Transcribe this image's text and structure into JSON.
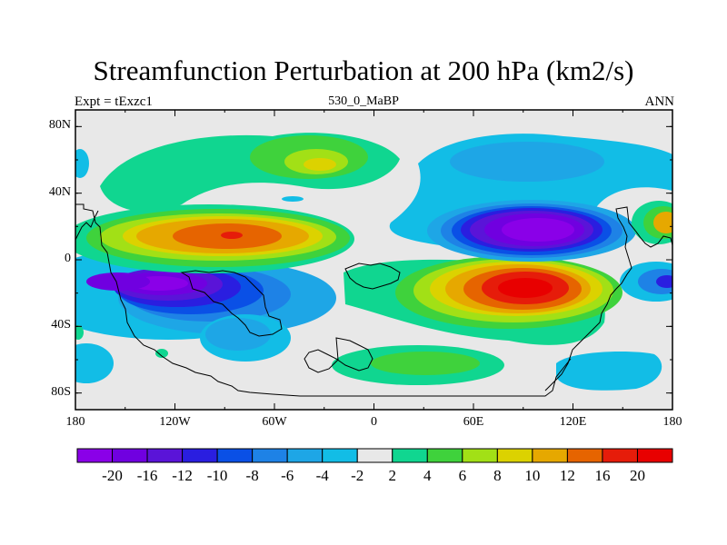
{
  "chart_data": {
    "type": "heatmap",
    "title": "Streamfunction Perturbation at 200 hPa (km2/s)",
    "subtitle_left": "Expt = tExzc1",
    "subtitle_center": "530_0_MaBP",
    "subtitle_right": "ANN",
    "x_ticks": [
      "180",
      "120W",
      "60W",
      "0",
      "60E",
      "120E",
      "180"
    ],
    "x_tick_values": [
      -180,
      -120,
      -60,
      0,
      60,
      120,
      180
    ],
    "y_ticks": [
      "80N",
      "40N",
      "0",
      "40S",
      "80S"
    ],
    "y_tick_values": [
      80,
      40,
      0,
      -40,
      -80
    ],
    "xlim": [
      -180,
      180
    ],
    "ylim": [
      -90,
      90
    ],
    "colorbar": {
      "labels": [
        "-20",
        "-16",
        "-12",
        "-10",
        "-8",
        "-6",
        "-4",
        "-2",
        "2",
        "4",
        "6",
        "8",
        "10",
        "12",
        "16",
        "20"
      ],
      "levels": [
        -20,
        -16,
        -12,
        -10,
        -8,
        -6,
        -4,
        -2,
        2,
        4,
        6,
        8,
        10,
        12,
        16,
        20
      ],
      "colors": [
        "#8a00e8",
        "#7000e0",
        "#5a14d8",
        "#2a1ee0",
        "#0a50e6",
        "#1e82e6",
        "#1ea6e6",
        "#12bde6",
        "#e8e8e8",
        "#10d690",
        "#3fd23c",
        "#a2e016",
        "#dcd200",
        "#e6a800",
        "#e66400",
        "#e61c0a",
        "#e80000"
      ]
    },
    "features": [
      {
        "label": "high",
        "lon": -90,
        "lat": 14,
        "value": 17
      },
      {
        "label": "high",
        "lon": 90,
        "lat": -17,
        "value": 20
      },
      {
        "label": "high",
        "lon": -45,
        "lat": 57,
        "value": 7
      },
      {
        "label": "high",
        "lon": 175,
        "lat": 21,
        "value": 10
      },
      {
        "label": "high",
        "lon": 28,
        "lat": -67,
        "value": 5
      },
      {
        "label": "low",
        "lon": -110,
        "lat": -15,
        "value": -20
      },
      {
        "label": "low",
        "lon": 95,
        "lat": 15,
        "value": -20
      },
      {
        "label": "low",
        "lon": -75,
        "lat": -50,
        "value": -8
      },
      {
        "label": "low",
        "lon": 100,
        "lat": 60,
        "value": -5
      },
      {
        "label": "low",
        "lon": 150,
        "lat": -70,
        "value": -4
      },
      {
        "label": "low",
        "lon": 175,
        "lat": -13,
        "value": -10
      }
    ]
  }
}
